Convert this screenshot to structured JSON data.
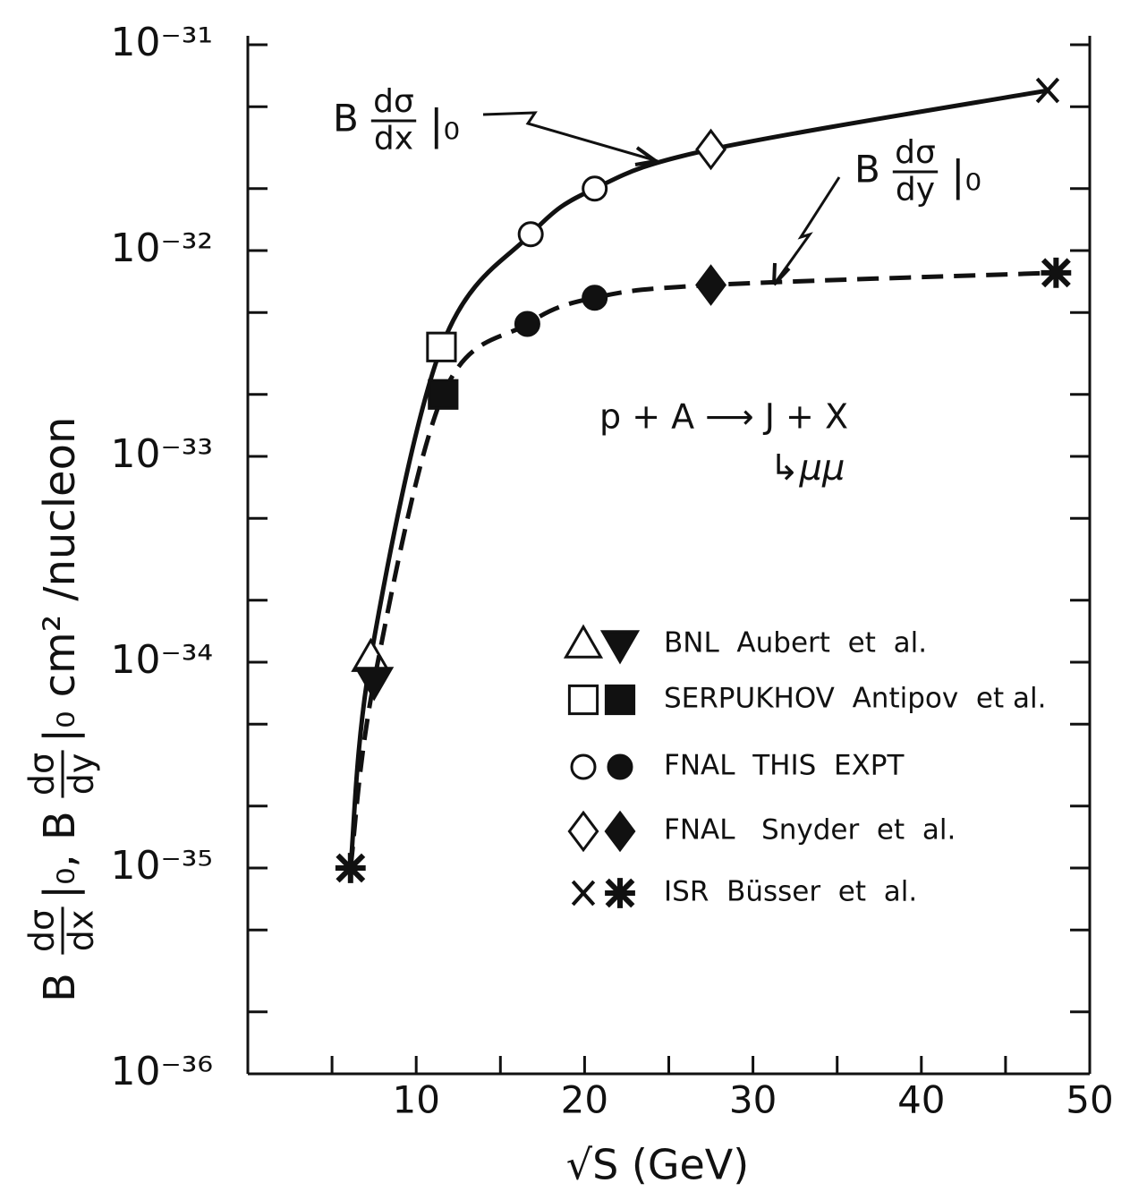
{
  "chart_data": {
    "type": "line",
    "xlabel": "√S (GeV)",
    "ylabel": [
      "B",
      "dσ",
      "dx",
      "|₀, B",
      "dσ",
      "dy",
      "|₀ cm² /nucleon"
    ],
    "xlim": [
      0,
      50
    ],
    "xticks": [
      10,
      20,
      30,
      40,
      50
    ],
    "ylim": [
      1e-36,
      1e-31
    ],
    "log_y": true,
    "yticks": [
      {
        "value": 1e-36,
        "label": "10⁻³⁶"
      },
      {
        "value": 1e-35,
        "label": "10⁻³⁵"
      },
      {
        "value": 1e-34,
        "label": "10⁻³⁴"
      },
      {
        "value": 1e-33,
        "label": "10⁻³³"
      },
      {
        "value": 1e-32,
        "label": "10⁻³²"
      },
      {
        "value": 1e-31,
        "label": "10⁻³¹"
      }
    ],
    "series": [
      {
        "name": [
          "B",
          "dσ",
          "dx",
          "|₀"
        ],
        "style": "solid",
        "filled": false,
        "x": [
          6.1,
          7.3,
          11.5,
          16.8,
          20.6,
          27.5,
          47.5
        ],
        "values": [
          1e-35,
          1.05e-34,
          3.4e-33,
          1.2e-32,
          2e-32,
          3.1e-32,
          6e-32
        ],
        "markers": [
          "x",
          "triangle",
          "square",
          "circle",
          "circle",
          "diamond",
          "x"
        ]
      },
      {
        "name": [
          "B",
          "dσ",
          "dy",
          "|₀"
        ],
        "style": "dashed",
        "filled": true,
        "x": [
          6.1,
          7.5,
          11.6,
          16.6,
          20.6,
          27.5,
          48
        ],
        "values": [
          1e-35,
          8.1e-35,
          2e-33,
          4.4e-33,
          5.9e-33,
          6.8e-33,
          7.8e-33
        ],
        "markers": [
          "star",
          "triangle-down",
          "square",
          "circle",
          "circle",
          "diamond",
          "star"
        ]
      }
    ],
    "annotations": [
      "p + A ⟶ J + X",
      "↳μμ"
    ],
    "legend": [
      {
        "name": "BNL  Aubert  et  al.",
        "open": "triangle",
        "filled": "triangle-down"
      },
      {
        "name": "SERPUKHOV  Antipov  et al.",
        "open": "square",
        "filled": "square"
      },
      {
        "name": "FNAL  THIS  EXPT",
        "open": "circle",
        "filled": "circle"
      },
      {
        "name": "FNAL   Snyder  et  al.",
        "open": "diamond",
        "filled": "diamond"
      },
      {
        "name": "ISR  Büsser  et  al.",
        "open": "x",
        "filled": "star"
      }
    ]
  }
}
